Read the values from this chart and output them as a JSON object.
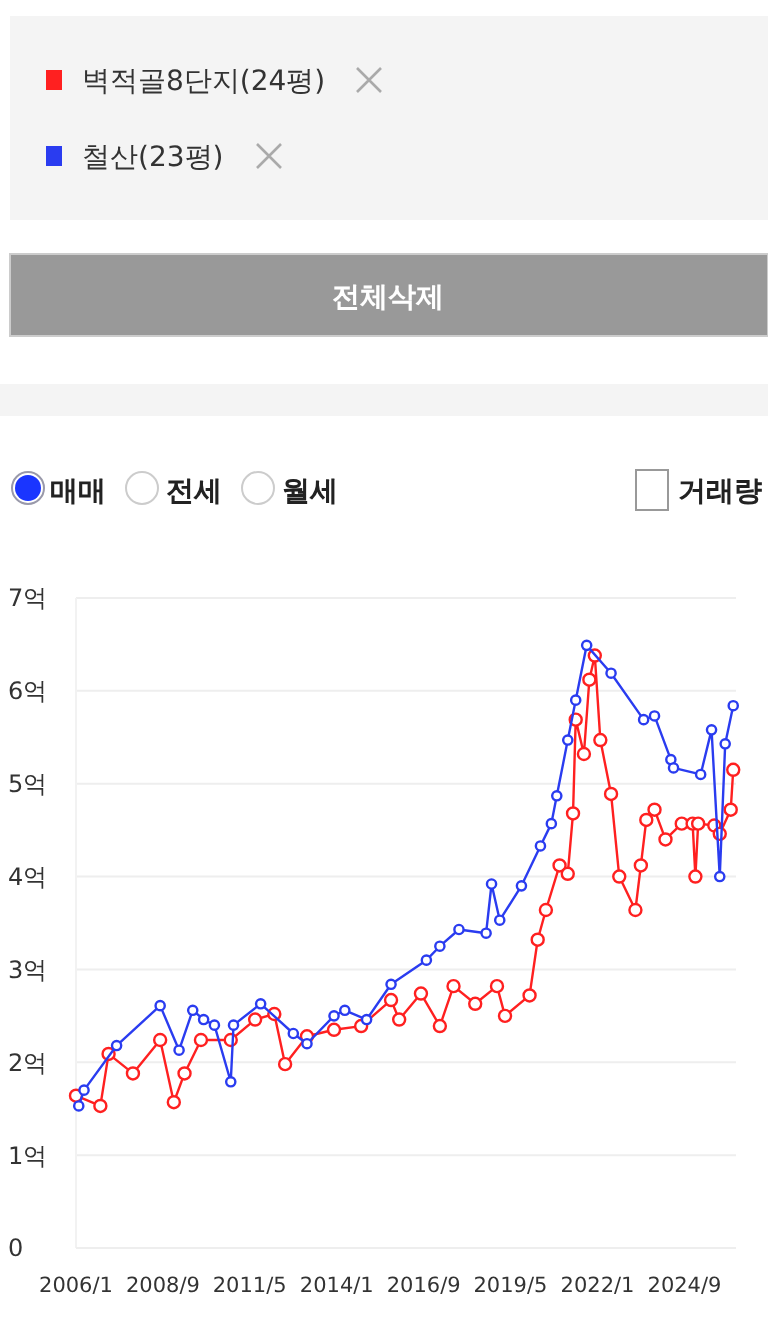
{
  "chart_data": {
    "type": "line",
    "legend": "top",
    "marker": "circle",
    "line_style": "solid",
    "grid": "y",
    "annotations": [
      "전체삭제",
      "매매",
      "전세",
      "월세",
      "거래량"
    ],
    "xlim": [
      "2006-01",
      "2026-04"
    ],
    "xticks": [
      {
        "value": "2006-01",
        "label": "2006/1"
      },
      {
        "value": "2008-09",
        "label": "2008/9"
      },
      {
        "value": "2011-05",
        "label": "2011/5"
      },
      {
        "value": "2014-01",
        "label": "2014/1"
      },
      {
        "value": "2016-09",
        "label": "2016/9"
      },
      {
        "value": "2019-05",
        "label": "2019/5"
      },
      {
        "value": "2022-01",
        "label": "2022/1"
      },
      {
        "value": "2024-09",
        "label": "2024/9"
      }
    ],
    "ylim": [
      0,
      7
    ],
    "yticks": [
      0,
      {
        "value": 1,
        "label": "1억"
      },
      {
        "value": 2,
        "label": "2억"
      },
      {
        "value": 3,
        "label": "3억"
      },
      {
        "value": 4,
        "label": "4억"
      },
      {
        "value": 5,
        "label": "5억"
      },
      {
        "value": 6,
        "label": "6억"
      },
      {
        "value": 7,
        "label": "7억"
      }
    ],
    "series": [
      {
        "name": "벽적골8단지(24평)",
        "color": "#ff2020",
        "x": [
          "2006-01",
          "2006-10",
          "2007-01",
          "2007-10",
          "2008-08",
          "2009-01",
          "2009-05",
          "2009-11",
          "2010-10",
          "2011-07",
          "2012-02",
          "2012-06",
          "2013-02",
          "2013-12",
          "2014-10",
          "2015-09",
          "2015-12",
          "2016-08",
          "2017-03",
          "2017-08",
          "2018-04",
          "2018-12",
          "2019-03",
          "2019-12",
          "2020-03",
          "2020-06",
          "2020-11",
          "2021-02",
          "2021-04",
          "2021-05",
          "2021-08",
          "2021-10",
          "2021-12",
          "2022-02",
          "2022-06",
          "2022-09",
          "2023-03",
          "2023-05",
          "2023-07",
          "2023-10",
          "2024-02",
          "2024-08",
          "2024-12",
          "2025-01",
          "2025-02",
          "2025-08",
          "2025-10",
          "2026-02",
          "2026-03"
        ],
        "values": [
          1.64,
          1.53,
          2.09,
          1.88,
          2.24,
          1.57,
          1.88,
          2.24,
          2.24,
          2.46,
          2.52,
          1.98,
          2.28,
          2.35,
          2.39,
          2.67,
          2.46,
          2.74,
          2.39,
          2.82,
          2.63,
          2.82,
          2.5,
          2.72,
          3.32,
          3.64,
          4.12,
          4.03,
          4.68,
          5.69,
          5.32,
          6.12,
          6.38,
          5.47,
          4.89,
          4.0,
          3.64,
          4.12,
          4.61,
          4.72,
          4.4,
          4.57,
          4.57,
          4.0,
          4.57,
          4.55,
          4.46,
          4.72,
          5.15
        ]
      },
      {
        "name": "철산(23평)",
        "color": "#2a3cf0",
        "x": [
          "2006-02",
          "2006-04",
          "2007-04",
          "2008-08",
          "2009-03",
          "2009-08",
          "2009-12",
          "2010-04",
          "2010-10",
          "2010-11",
          "2011-09",
          "2012-09",
          "2013-02",
          "2013-12",
          "2014-04",
          "2014-12",
          "2015-09",
          "2016-10",
          "2017-03",
          "2017-10",
          "2018-08",
          "2018-10",
          "2019-01",
          "2019-09",
          "2020-04",
          "2020-08",
          "2020-10",
          "2021-02",
          "2021-05",
          "2021-09",
          "2022-06",
          "2023-06",
          "2023-10",
          "2024-04",
          "2024-05",
          "2025-03",
          "2025-07",
          "2025-10",
          "2025-12",
          "2026-03"
        ],
        "values": [
          1.53,
          1.7,
          2.18,
          2.61,
          2.13,
          2.56,
          2.46,
          2.4,
          1.79,
          2.4,
          2.63,
          2.31,
          2.2,
          2.5,
          2.56,
          2.46,
          2.84,
          3.1,
          3.25,
          3.43,
          3.39,
          3.92,
          3.53,
          3.9,
          4.33,
          4.57,
          4.87,
          5.47,
          5.9,
          6.49,
          6.19,
          5.69,
          5.73,
          5.26,
          5.17,
          5.1,
          5.58,
          4.0,
          5.43,
          5.84
        ]
      }
    ]
  }
}
